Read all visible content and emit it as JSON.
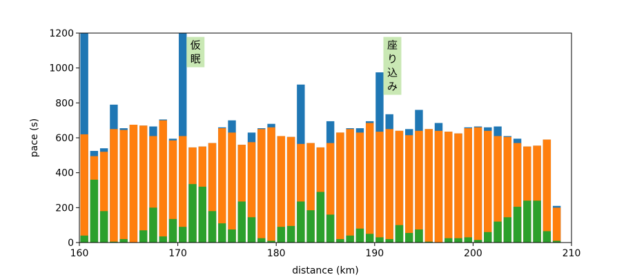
{
  "chart_data": {
    "type": "bar",
    "xlabel": "distance (km)",
    "ylabel": "pace (s)",
    "xlim": [
      160,
      210
    ],
    "ylim": [
      0,
      1200
    ],
    "x_ticks": [
      160,
      170,
      180,
      190,
      200,
      210
    ],
    "y_ticks": [
      0,
      200,
      400,
      600,
      800,
      1000,
      1200
    ],
    "bar_width_km": 0.8,
    "grid": false,
    "legend": "none",
    "x": [
      160.5,
      161.5,
      162.5,
      163.5,
      164.5,
      165.5,
      166.5,
      167.5,
      168.5,
      169.5,
      170.5,
      171.5,
      172.5,
      173.5,
      174.5,
      175.5,
      176.5,
      177.5,
      178.5,
      179.5,
      180.5,
      181.5,
      182.5,
      183.5,
      184.5,
      185.5,
      186.5,
      187.5,
      188.5,
      189.5,
      190.5,
      191.5,
      192.5,
      193.5,
      194.5,
      195.5,
      196.5,
      197.5,
      198.5,
      199.5,
      200.5,
      201.5,
      202.5,
      203.5,
      204.5,
      205.5,
      206.5,
      207.5,
      208.5
    ],
    "series": [
      {
        "color": "#1f77b4",
        "values": [
          1200,
          525,
          540,
          790,
          655,
          675,
          670,
          665,
          705,
          595,
          1200,
          545,
          550,
          570,
          660,
          700,
          560,
          630,
          655,
          680,
          610,
          605,
          905,
          570,
          545,
          695,
          630,
          655,
          655,
          695,
          975,
          735,
          640,
          650,
          760,
          650,
          685,
          635,
          625,
          660,
          665,
          660,
          665,
          610,
          595,
          550,
          555,
          590,
          210
        ]
      },
      {
        "color": "#ff7f0e",
        "values": [
          620,
          495,
          520,
          650,
          645,
          675,
          670,
          610,
          700,
          585,
          610,
          545,
          550,
          570,
          655,
          630,
          560,
          575,
          650,
          660,
          610,
          605,
          565,
          570,
          545,
          570,
          630,
          650,
          630,
          685,
          635,
          650,
          640,
          615,
          640,
          650,
          640,
          635,
          625,
          655,
          660,
          640,
          610,
          605,
          570,
          550,
          555,
          590,
          200
        ]
      },
      {
        "color": "#2ca02c",
        "values": [
          40,
          360,
          180,
          5,
          20,
          0,
          70,
          200,
          35,
          135,
          90,
          335,
          320,
          180,
          110,
          75,
          235,
          145,
          25,
          10,
          90,
          95,
          235,
          185,
          290,
          160,
          20,
          40,
          80,
          50,
          30,
          20,
          100,
          55,
          75,
          5,
          0,
          25,
          25,
          30,
          15,
          60,
          120,
          145,
          205,
          240,
          240,
          65,
          10
        ]
      }
    ],
    "annotations": [
      {
        "text_lines": [
          "仮",
          "眠"
        ],
        "anchor_x": 171.8,
        "anchor_y": 1170,
        "background": "#c9e8b4"
      },
      {
        "text_lines": [
          "座",
          "り",
          "込",
          "み"
        ],
        "anchor_x": 191.8,
        "anchor_y": 1170,
        "background": "#c9e8b4"
      }
    ]
  }
}
